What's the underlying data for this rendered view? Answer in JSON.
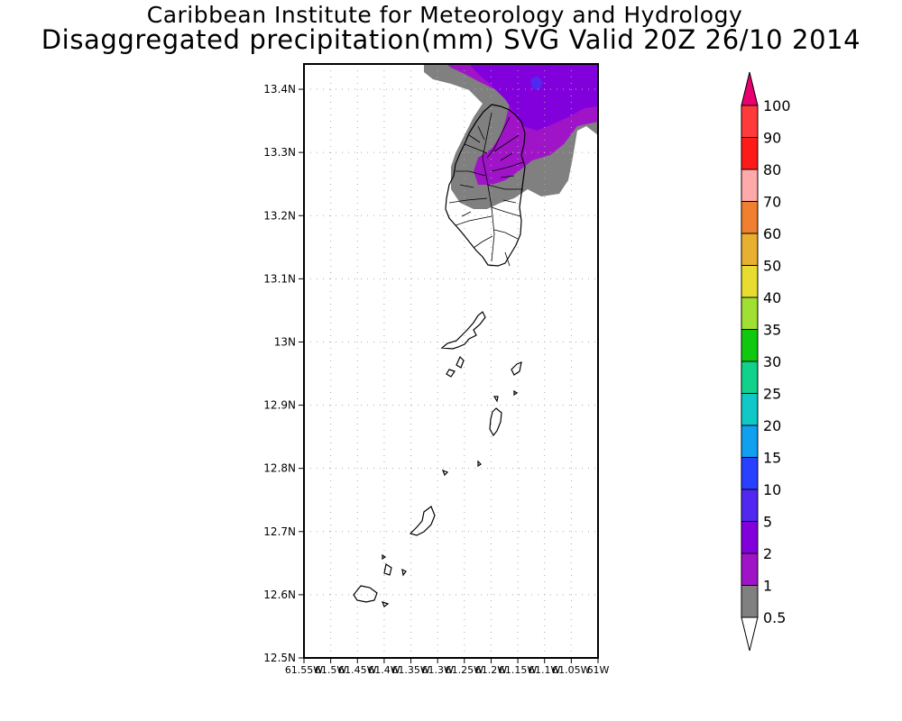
{
  "title": {
    "line1": "Caribbean Institute for Meteorology and Hydrology",
    "line2": "Disaggregated precipitation(mm) SVG Valid 20Z 26/10 2014"
  },
  "map": {
    "lat_ticks": [
      "13.4N",
      "13.3N",
      "13.2N",
      "13.1N",
      "13N",
      "12.9N",
      "12.8N",
      "12.7N",
      "12.6N",
      "12.5N"
    ],
    "lon_ticks": [
      "61.55W",
      "61.5W",
      "61.45W",
      "61.4W",
      "61.35W",
      "61.3W",
      "61.25W",
      "61.2W",
      "61.15W",
      "61.1W",
      "61.05W",
      "61W"
    ],
    "lat_range": [
      12.5,
      13.44
    ],
    "lon_range": [
      -61.55,
      -61.0
    ],
    "grid": true
  },
  "colorbar": {
    "levels": [
      {
        "label": "100",
        "color": "#e8006e"
      },
      {
        "label": "90",
        "color": "#ff3a3a"
      },
      {
        "label": "80",
        "color": "#ff1a1a"
      },
      {
        "label": "70",
        "color": "#ffaaaa"
      },
      {
        "label": "60",
        "color": "#f08030"
      },
      {
        "label": "50",
        "color": "#e8b030"
      },
      {
        "label": "40",
        "color": "#e8dc30"
      },
      {
        "label": "35",
        "color": "#a0e032"
      },
      {
        "label": "30",
        "color": "#10c810"
      },
      {
        "label": "25",
        "color": "#10d28a"
      },
      {
        "label": "20",
        "color": "#10c8c8"
      },
      {
        "label": "15",
        "color": "#10a0f0"
      },
      {
        "label": "10",
        "color": "#2840ff"
      },
      {
        "label": "5",
        "color": "#5028f0"
      },
      {
        "label": "2",
        "color": "#8200dc"
      },
      {
        "label": "1",
        "color": "#a014c8"
      },
      {
        "label": "0.5",
        "color": "#808080"
      }
    ],
    "over_color": "#e8006e",
    "under_color": "#ffffff"
  }
}
